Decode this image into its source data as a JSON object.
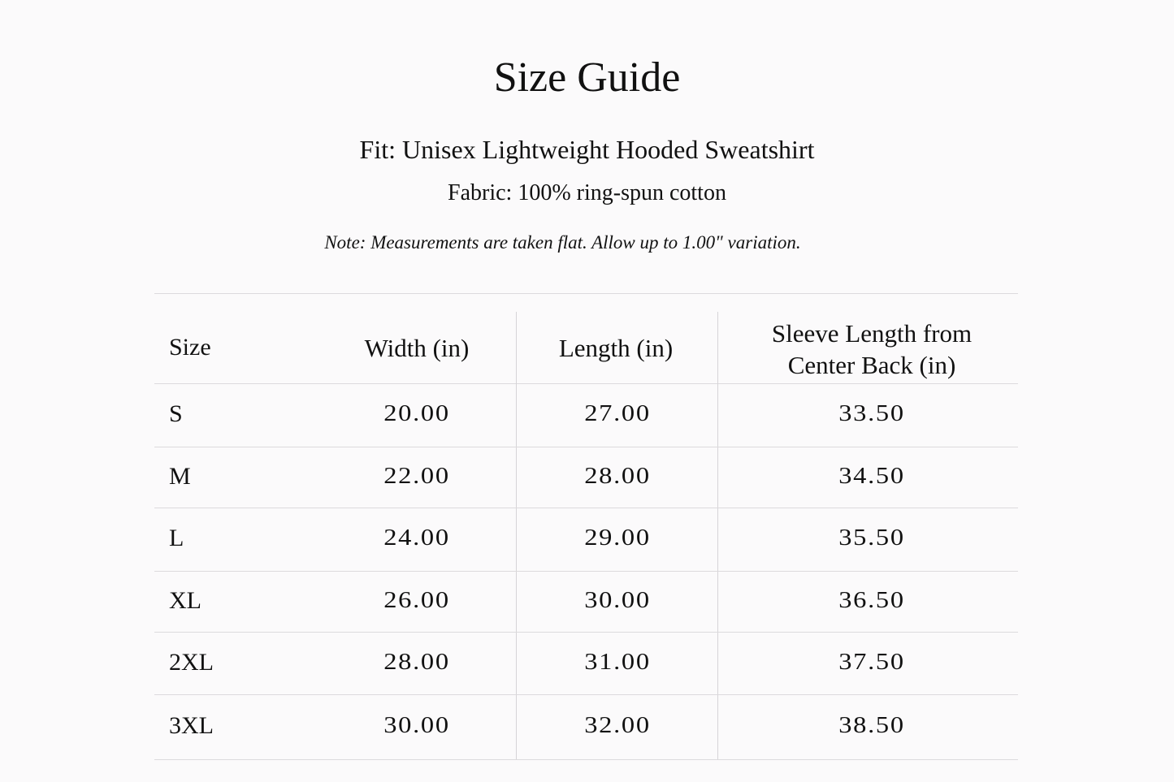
{
  "title": "Size Guide",
  "fit": "Fit:  Unisex Lightweight Hooded Sweatshirt",
  "fabric": "Fabric:  100% ring-spun cotton",
  "note": "Note:  Measurements are taken flat. Allow up to 1.00\" variation.",
  "table": {
    "headers": [
      "Size",
      "Width (in)",
      "Length (in)",
      "Sleeve Length from",
      "Center Back (in)"
    ],
    "rows": [
      [
        "S",
        "20.00",
        "27.00",
        "33.50"
      ],
      [
        "M",
        "22.00",
        "28.00",
        "34.50"
      ],
      [
        "L",
        "24.00",
        "29.00",
        "35.50"
      ],
      [
        "XL",
        "26.00",
        "30.00",
        "36.50"
      ],
      [
        "2XL",
        "28.00",
        "31.00",
        "37.50"
      ],
      [
        "3XL",
        "30.00",
        "32.00",
        "38.50"
      ]
    ]
  }
}
